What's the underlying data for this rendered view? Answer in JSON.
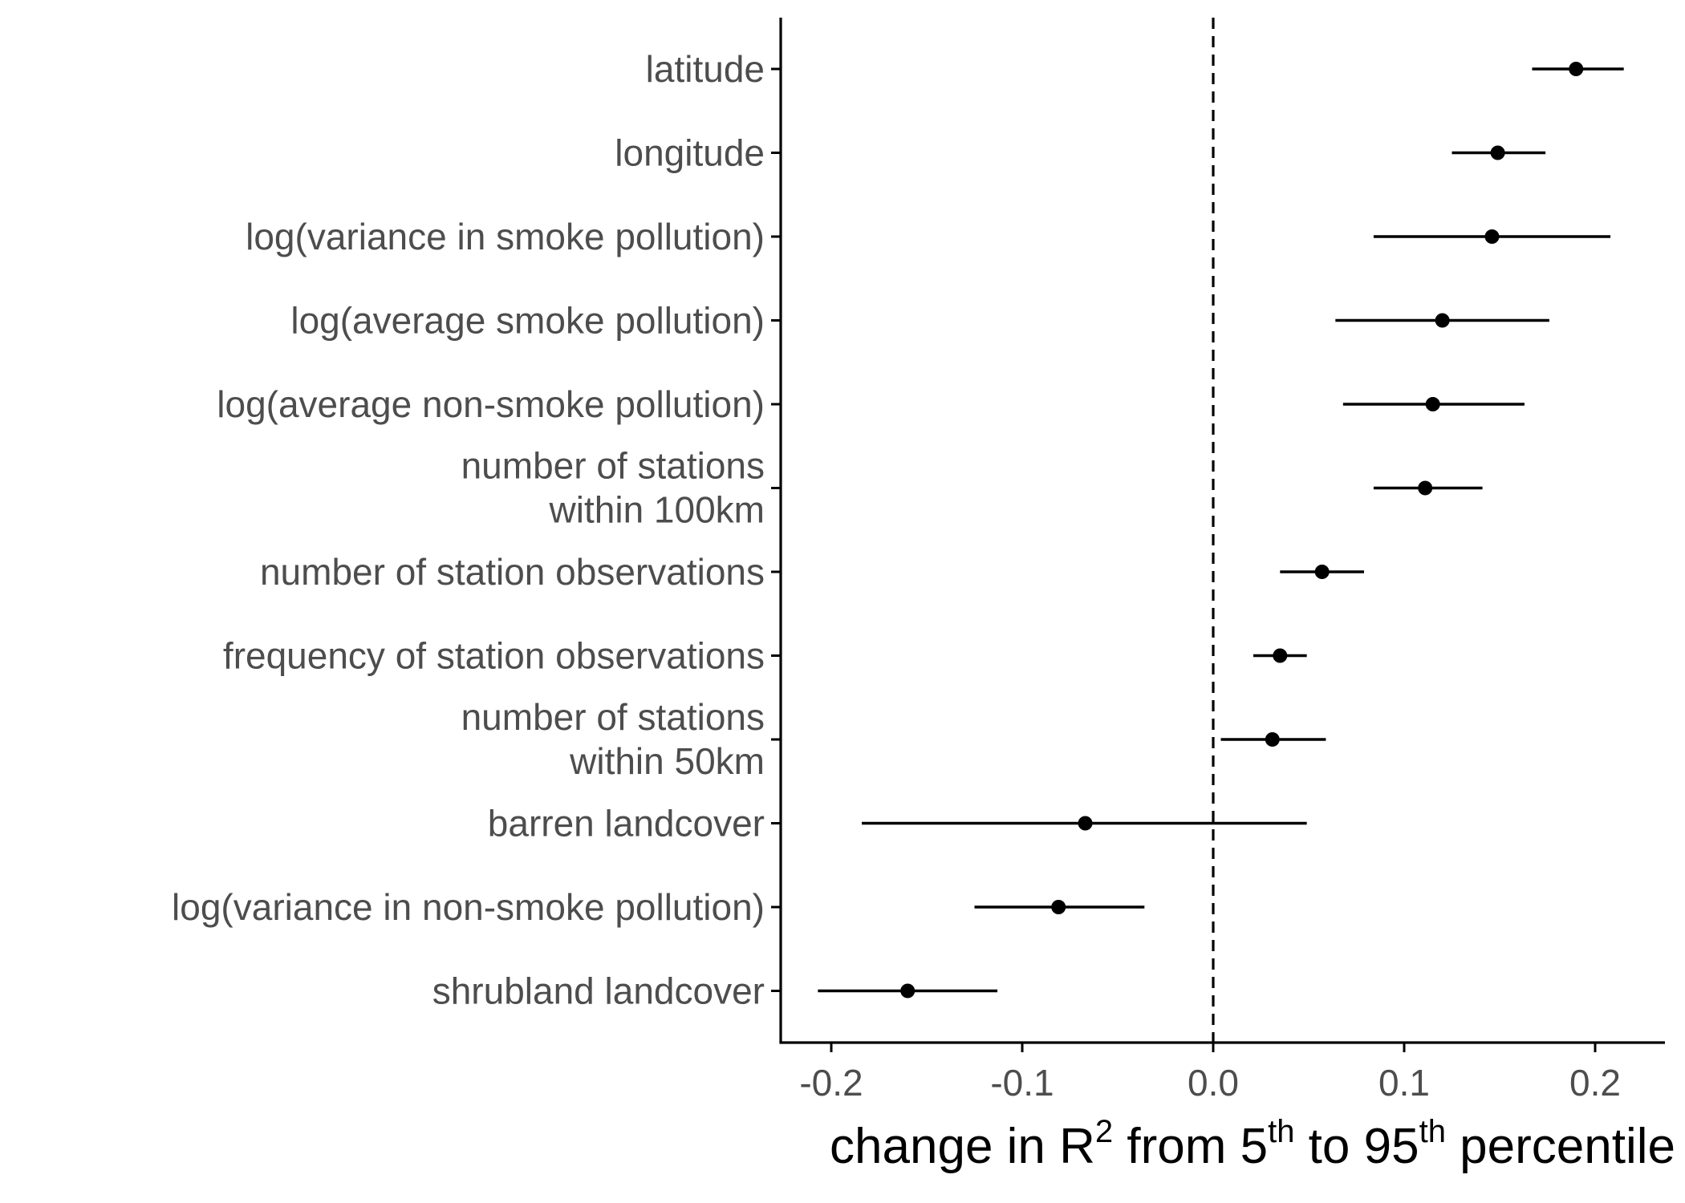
{
  "chart_data": {
    "type": "scatter",
    "orientation": "horizontal",
    "xlabel": {
      "pre": "change in R",
      "sup1": "2",
      "mid": " from 5",
      "sup2": "th",
      "mid2": " to 95",
      "sup3": "th",
      "post": " percentile"
    },
    "xlim": [
      -0.23,
      0.235
    ],
    "xticks": [
      -0.2,
      -0.1,
      0.0,
      0.1,
      0.2
    ],
    "xtick_labels": [
      "-0.2",
      "-0.1",
      "0.0",
      "0.1",
      "0.2"
    ],
    "reference_line": {
      "x": 0.0,
      "style": "dashed"
    },
    "grid": false,
    "legend": "none",
    "colors": {
      "points": "#000000",
      "text": "#4d4d4d",
      "axis": "#000000"
    },
    "rows": [
      {
        "label": [
          "latitude"
        ],
        "estimate": 0.19,
        "lower": 0.167,
        "upper": 0.215
      },
      {
        "label": [
          "longitude"
        ],
        "estimate": 0.149,
        "lower": 0.125,
        "upper": 0.174
      },
      {
        "label": [
          "log(variance in smoke pollution)"
        ],
        "estimate": 0.146,
        "lower": 0.084,
        "upper": 0.208
      },
      {
        "label": [
          "log(average smoke pollution)"
        ],
        "estimate": 0.12,
        "lower": 0.064,
        "upper": 0.176
      },
      {
        "label": [
          "log(average non-smoke pollution)"
        ],
        "estimate": 0.115,
        "lower": 0.068,
        "upper": 0.163
      },
      {
        "label": [
          "number of stations",
          "within 100km"
        ],
        "estimate": 0.111,
        "lower": 0.084,
        "upper": 0.141
      },
      {
        "label": [
          "number of station observations"
        ],
        "estimate": 0.057,
        "lower": 0.035,
        "upper": 0.079
      },
      {
        "label": [
          "frequency of station observations"
        ],
        "estimate": 0.035,
        "lower": 0.021,
        "upper": 0.049
      },
      {
        "label": [
          "number of stations",
          "within 50km"
        ],
        "estimate": 0.031,
        "lower": 0.004,
        "upper": 0.059
      },
      {
        "label": [
          "barren landcover"
        ],
        "estimate": -0.067,
        "lower": -0.184,
        "upper": 0.049
      },
      {
        "label": [
          "log(variance in non-smoke pollution)"
        ],
        "estimate": -0.081,
        "lower": -0.125,
        "upper": -0.036
      },
      {
        "label": [
          "shrubland landcover"
        ],
        "estimate": -0.16,
        "lower": -0.207,
        "upper": -0.113
      }
    ]
  }
}
